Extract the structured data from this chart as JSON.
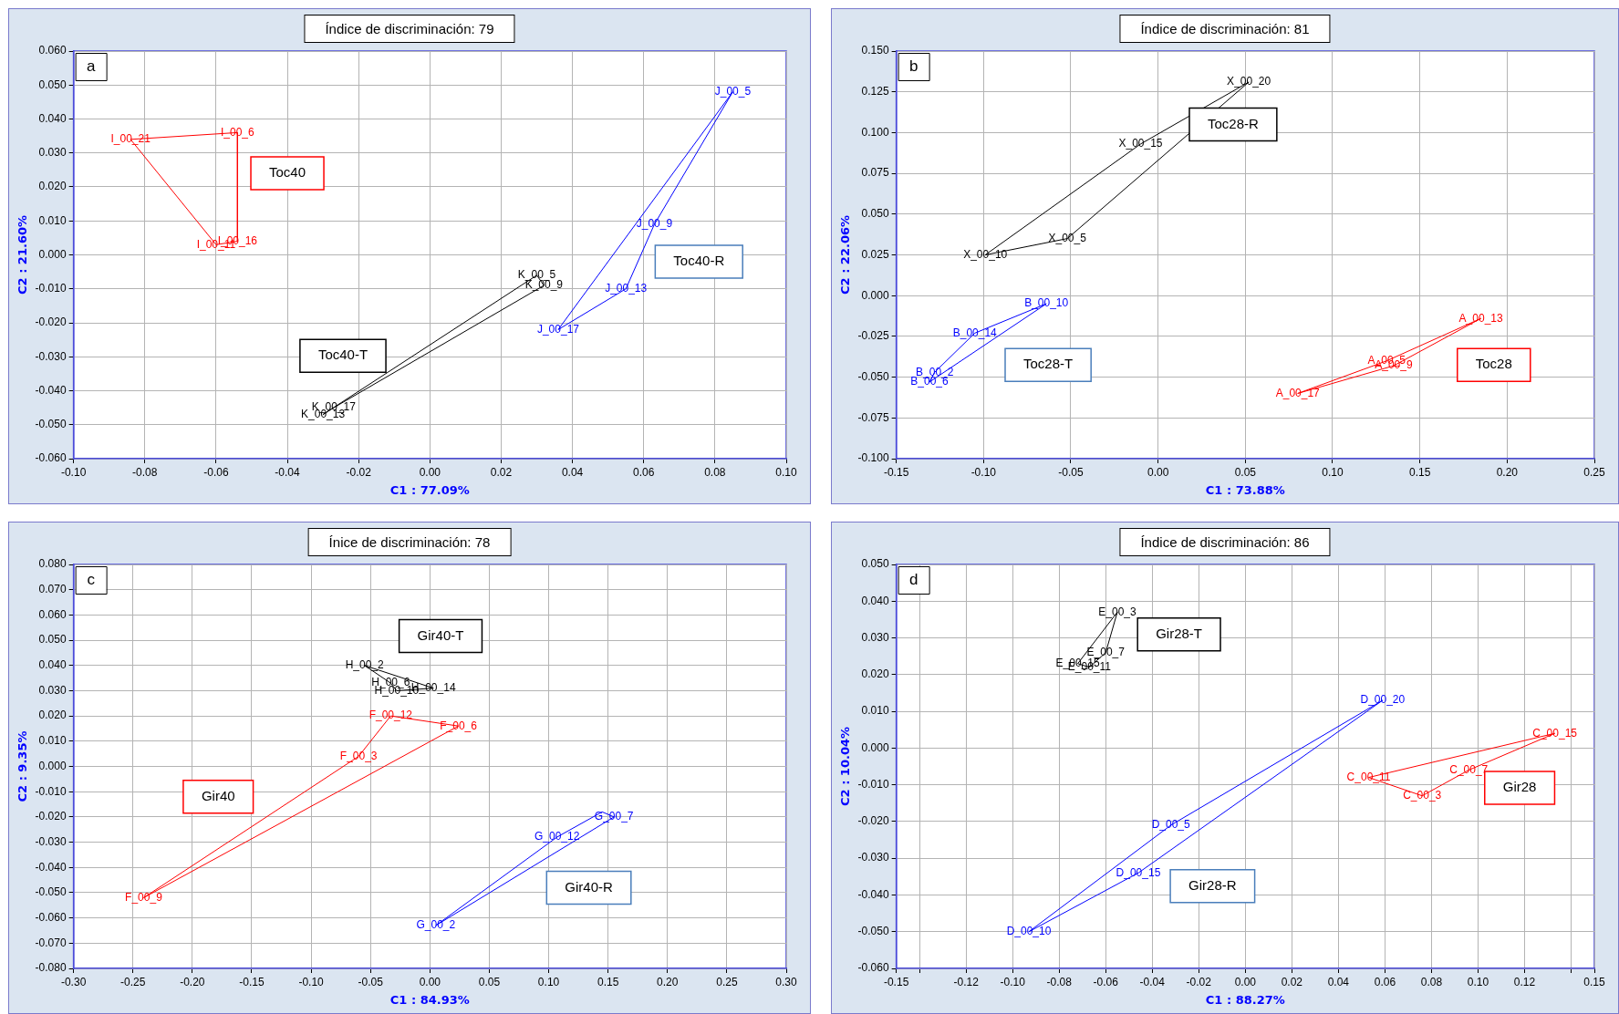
{
  "chart_data": [
    {
      "type": "line",
      "title": "Índice de discriminación: 79",
      "xlabel": "C1 : 77.09%",
      "ylabel": "C2 : 21.60%",
      "grid": true,
      "legend": false,
      "marker": "none",
      "xlim": [
        -0.1,
        0.1
      ],
      "ylim": [
        -0.06,
        0.06
      ],
      "xticks": [
        {
          "value": -0.1,
          "label": "-0.10"
        },
        {
          "value": -0.08,
          "label": "-0.08"
        },
        {
          "value": -0.06,
          "label": "-0.06"
        },
        {
          "value": -0.04,
          "label": "-0.04"
        },
        {
          "value": -0.02,
          "label": "-0.02"
        },
        {
          "value": 0,
          "label": "0.00"
        },
        {
          "value": 0.02,
          "label": "0.02"
        },
        {
          "value": 0.04,
          "label": "0.04"
        },
        {
          "value": 0.06,
          "label": "0.06"
        },
        {
          "value": 0.08,
          "label": "0.08"
        },
        {
          "value": 0.1,
          "label": "0.10"
        }
      ],
      "yticks": [
        {
          "value": -0.06,
          "label": "-0.060"
        },
        {
          "value": -0.05,
          "label": "-0.050"
        },
        {
          "value": -0.04,
          "label": "-0.040"
        },
        {
          "value": -0.03,
          "label": "-0.030"
        },
        {
          "value": -0.02,
          "label": "-0.020"
        },
        {
          "value": -0.01,
          "label": "-0.010"
        },
        {
          "value": 0,
          "label": "0.000"
        },
        {
          "value": 0.01,
          "label": "0.010"
        },
        {
          "value": 0.02,
          "label": "0.020"
        },
        {
          "value": 0.03,
          "label": "0.030"
        },
        {
          "value": 0.04,
          "label": "0.040"
        },
        {
          "value": 0.05,
          "label": "0.050"
        },
        {
          "value": 0.06,
          "label": "0.060"
        }
      ],
      "annotations": [
        "a"
      ],
      "series": [
        {
          "name": "Toc40",
          "color": "#ff0000",
          "x": [
            -0.084,
            -0.054,
            -0.054
          ],
          "values": [
            0.034,
            0.036,
            0.004
          ],
          "value_labels": [
            "I_00_21",
            "I_00_6",
            "I_00_16"
          ]
        },
        {
          "color": "#ff0000",
          "x": [
            -0.084,
            -0.06,
            -0.054
          ],
          "values": [
            0.034,
            0.003,
            0.004
          ],
          "value_labels": [
            null,
            "I_00_11",
            null
          ]
        },
        {
          "color": "#0000ff",
          "x": [
            0.036,
            0.085
          ],
          "values": [
            -0.022,
            0.048
          ],
          "value_labels": [
            "J_00_17",
            "J_00_5"
          ]
        },
        {
          "name": "Toc40-R",
          "color": "#0000ff",
          "x": [
            0.036,
            0.055,
            0.063,
            0.085
          ],
          "values": [
            -0.022,
            -0.01,
            0.009,
            0.048
          ],
          "value_labels": [
            null,
            "J_00_13",
            "J_00_9",
            null
          ]
        },
        {
          "name": "Toc40-T",
          "color": "#000000",
          "x": [
            -0.03,
            0.03,
            0.032
          ],
          "values": [
            -0.047,
            -0.006,
            -0.009
          ],
          "value_labels": [
            "K_00_13",
            "K_00_5",
            "K_00_9"
          ]
        },
        {
          "color": "#000000",
          "x": [
            -0.03,
            -0.027,
            0.032
          ],
          "values": [
            -0.047,
            -0.045,
            -0.009
          ],
          "value_labels": [
            null,
            "K_00_17",
            null
          ]
        }
      ]
    },
    {
      "type": "line",
      "title": "Índice de discriminación: 81",
      "xlabel": "C1 : 73.88%",
      "ylabel": "C2 : 22.06%",
      "grid": true,
      "legend": false,
      "marker": "none",
      "xlim": [
        -0.15,
        0.25
      ],
      "ylim": [
        -0.1,
        0.15
      ],
      "xticks": [
        {
          "value": -0.15,
          "label": "-0.15"
        },
        {
          "value": -0.1,
          "label": "-0.10"
        },
        {
          "value": -0.05,
          "label": "-0.05"
        },
        {
          "value": 0,
          "label": "0.00"
        },
        {
          "value": 0.05,
          "label": "0.05"
        },
        {
          "value": 0.1,
          "label": "0.10"
        },
        {
          "value": 0.15,
          "label": "0.15"
        },
        {
          "value": 0.2,
          "label": "0.20"
        },
        {
          "value": 0.25,
          "label": "0.25"
        }
      ],
      "yticks": [
        {
          "value": -0.1,
          "label": "-0.100"
        },
        {
          "value": -0.075,
          "label": "-0.075"
        },
        {
          "value": -0.05,
          "label": "-0.050"
        },
        {
          "value": -0.025,
          "label": "-0.025"
        },
        {
          "value": 0,
          "label": "0.000"
        },
        {
          "value": 0.025,
          "label": "0.025"
        },
        {
          "value": 0.05,
          "label": "0.050"
        },
        {
          "value": 0.075,
          "label": "0.075"
        },
        {
          "value": 0.1,
          "label": "0.100"
        },
        {
          "value": 0.125,
          "label": "0.125"
        },
        {
          "value": 0.15,
          "label": "0.150"
        }
      ],
      "annotations": [
        "b"
      ],
      "series": [
        {
          "name": "Toc28-R",
          "color": "#000000",
          "x": [
            -0.099,
            -0.01,
            0.052
          ],
          "values": [
            0.025,
            0.093,
            0.131
          ],
          "value_labels": [
            "X_00_10",
            "X_00_15",
            "X_00_20"
          ]
        },
        {
          "color": "#000000",
          "x": [
            -0.099,
            -0.052,
            0.052
          ],
          "values": [
            0.025,
            0.035,
            0.131
          ],
          "value_labels": [
            null,
            "X_00_5",
            null
          ]
        },
        {
          "name": "Toc28-T",
          "color": "#0000ff",
          "x": [
            -0.131,
            -0.128,
            -0.105,
            -0.064
          ],
          "values": [
            -0.053,
            -0.047,
            -0.023,
            -0.005
          ],
          "value_labels": [
            "B_00_6",
            "B_00_2",
            "B_00_14",
            "B_00_10"
          ]
        },
        {
          "color": "#0000ff",
          "x": [
            -0.131,
            -0.064
          ],
          "values": [
            -0.053,
            -0.005
          ],
          "value_labels": [
            null,
            null
          ]
        },
        {
          "name": "Toc28",
          "color": "#ff0000",
          "x": [
            0.08,
            0.131,
            0.185
          ],
          "values": [
            -0.06,
            -0.04,
            -0.014
          ],
          "value_labels": [
            "A_00_17",
            "A_00_5",
            "A_00_13"
          ]
        },
        {
          "color": "#ff0000",
          "x": [
            0.08,
            0.135,
            0.185
          ],
          "values": [
            -0.06,
            -0.043,
            -0.014
          ],
          "value_labels": [
            null,
            "A_00_9",
            null
          ]
        }
      ]
    },
    {
      "type": "line",
      "title": "Ínice de discriminación: 78",
      "xlabel": "C1 : 84.93%",
      "ylabel": "C2 : 9.35%",
      "grid": true,
      "legend": false,
      "marker": "none",
      "xlim": [
        -0.3,
        0.3
      ],
      "ylim": [
        -0.08,
        0.08
      ],
      "xticks": [
        {
          "value": -0.3,
          "label": "-0.30"
        },
        {
          "value": -0.25,
          "label": "-0.25"
        },
        {
          "value": -0.2,
          "label": "-0.20"
        },
        {
          "value": -0.15,
          "label": "-0.15"
        },
        {
          "value": -0.1,
          "label": "-0.10"
        },
        {
          "value": -0.05,
          "label": "-0.05"
        },
        {
          "value": 0,
          "label": "0.00"
        },
        {
          "value": 0.05,
          "label": "0.05"
        },
        {
          "value": 0.1,
          "label": "0.10"
        },
        {
          "value": 0.15,
          "label": "0.15"
        },
        {
          "value": 0.2,
          "label": "0.20"
        },
        {
          "value": 0.25,
          "label": "0.25"
        },
        {
          "value": 0.3,
          "label": "0.30"
        }
      ],
      "yticks": [
        {
          "value": -0.08,
          "label": "-0.080"
        },
        {
          "value": -0.07,
          "label": "-0.070"
        },
        {
          "value": -0.06,
          "label": "-0.060"
        },
        {
          "value": -0.05,
          "label": "-0.050"
        },
        {
          "value": -0.04,
          "label": "-0.040"
        },
        {
          "value": -0.03,
          "label": "-0.030"
        },
        {
          "value": -0.02,
          "label": "-0.020"
        },
        {
          "value": -0.01,
          "label": "-0.010"
        },
        {
          "value": 0,
          "label": "0.000"
        },
        {
          "value": 0.01,
          "label": "0.010"
        },
        {
          "value": 0.02,
          "label": "0.020"
        },
        {
          "value": 0.03,
          "label": "0.030"
        },
        {
          "value": 0.04,
          "label": "0.040"
        },
        {
          "value": 0.05,
          "label": "0.050"
        },
        {
          "value": 0.06,
          "label": "0.060"
        },
        {
          "value": 0.07,
          "label": "0.070"
        },
        {
          "value": 0.08,
          "label": "0.080"
        }
      ],
      "annotations": [
        "c"
      ],
      "series": [
        {
          "name": "Gir40-T",
          "color": "#000000",
          "x": [
            -0.055,
            0.003
          ],
          "values": [
            0.04,
            0.031
          ],
          "value_labels": [
            "H_00_2",
            "H_00_14"
          ]
        },
        {
          "color": "#000000",
          "x": [
            -0.055,
            -0.033,
            -0.028,
            0.003
          ],
          "values": [
            0.04,
            0.033,
            0.03,
            0.031
          ],
          "value_labels": [
            null,
            "H_00_6",
            "H_00_10",
            null
          ]
        },
        {
          "name": "Gir40",
          "color": "#ff0000",
          "x": [
            -0.241,
            -0.06,
            -0.033,
            0.024
          ],
          "values": [
            -0.052,
            0.004,
            0.02,
            0.016
          ],
          "value_labels": [
            "F_00_9",
            "F_00_3",
            "F_00_12",
            "F_00_6"
          ]
        },
        {
          "color": "#ff0000",
          "x": [
            -0.241,
            0.024
          ],
          "values": [
            -0.052,
            0.016
          ],
          "value_labels": [
            null,
            null
          ]
        },
        {
          "name": "Gir40-R",
          "color": "#0000ff",
          "x": [
            0.005,
            0.107,
            0.145,
            0.155
          ],
          "values": [
            -0.063,
            -0.028,
            -0.018,
            -0.02
          ],
          "value_labels": [
            "G_00_2",
            "G_00_12",
            null,
            "G_00_7"
          ]
        },
        {
          "color": "#0000ff",
          "x": [
            0.005,
            0.155
          ],
          "values": [
            -0.063,
            -0.02
          ],
          "value_labels": [
            null,
            null
          ]
        }
      ]
    },
    {
      "type": "line",
      "title": "Índice de discriminación: 86",
      "xlabel": "C1 : 88.27%",
      "ylabel": "C2 : 10.04%",
      "grid": true,
      "legend": false,
      "marker": "none",
      "xlim": [
        -0.15,
        0.15
      ],
      "ylim": [
        -0.06,
        0.05
      ],
      "xticks": [
        {
          "value": -0.15,
          "label": "-0.15"
        },
        {
          "value": -0.14,
          "label": null
        },
        {
          "value": -0.12,
          "label": "-0.12"
        },
        {
          "value": -0.1,
          "label": "-0.10"
        },
        {
          "value": -0.08,
          "label": "-0.08"
        },
        {
          "value": -0.06,
          "label": "-0.06"
        },
        {
          "value": -0.04,
          "label": "-0.04"
        },
        {
          "value": -0.02,
          "label": "-0.02"
        },
        {
          "value": 0,
          "label": "0.00"
        },
        {
          "value": 0.02,
          "label": "0.02"
        },
        {
          "value": 0.04,
          "label": "0.04"
        },
        {
          "value": 0.06,
          "label": "0.06"
        },
        {
          "value": 0.08,
          "label": "0.08"
        },
        {
          "value": 0.1,
          "label": "0.10"
        },
        {
          "value": 0.12,
          "label": "0.12"
        },
        {
          "value": 0.14,
          "label": null
        },
        {
          "value": 0.15,
          "label": "0.15"
        }
      ],
      "yticks": [
        {
          "value": -0.06,
          "label": "-0.060"
        },
        {
          "value": -0.05,
          "label": "-0.050"
        },
        {
          "value": -0.04,
          "label": "-0.040"
        },
        {
          "value": -0.03,
          "label": "-0.030"
        },
        {
          "value": -0.02,
          "label": "-0.020"
        },
        {
          "value": -0.01,
          "label": "-0.010"
        },
        {
          "value": 0,
          "label": "0.000"
        },
        {
          "value": 0.01,
          "label": "0.010"
        },
        {
          "value": 0.02,
          "label": "0.020"
        },
        {
          "value": 0.03,
          "label": "0.030"
        },
        {
          "value": 0.04,
          "label": "0.040"
        },
        {
          "value": 0.05,
          "label": "0.050"
        }
      ],
      "annotations": [
        "d"
      ],
      "series": [
        {
          "name": "Gir28-T",
          "color": "#000000",
          "x": [
            -0.072,
            -0.055
          ],
          "values": [
            0.023,
            0.037
          ],
          "value_labels": [
            "E_00_15",
            "E_00_3"
          ]
        },
        {
          "color": "#000000",
          "x": [
            -0.072,
            -0.067,
            -0.06,
            -0.055
          ],
          "values": [
            0.023,
            0.022,
            0.026,
            0.037
          ],
          "value_labels": [
            null,
            "E_00_11",
            "E_00_7",
            null
          ]
        },
        {
          "color": "#0000ff",
          "x": [
            -0.093,
            -0.032,
            0.059
          ],
          "values": [
            -0.05,
            -0.021,
            0.013
          ],
          "value_labels": [
            "D_00_10",
            "D_00_5",
            "D_00_20"
          ]
        },
        {
          "name": "Gir28-R",
          "color": "#0000ff",
          "x": [
            -0.093,
            -0.046,
            0.059
          ],
          "values": [
            -0.05,
            -0.034,
            0.013
          ],
          "value_labels": [
            null,
            "D_00_15",
            null
          ]
        },
        {
          "name": "Gir28",
          "color": "#ff0000",
          "x": [
            0.053,
            0.133
          ],
          "values": [
            -0.008,
            0.004
          ],
          "value_labels": [
            "C_00_11",
            "C_00_15"
          ]
        },
        {
          "color": "#ff0000",
          "x": [
            0.053,
            0.076,
            0.096,
            0.133
          ],
          "values": [
            -0.008,
            -0.013,
            -0.006,
            0.004
          ],
          "value_labels": [
            null,
            "C_00_3",
            "C_00_7",
            null
          ]
        }
      ]
    }
  ]
}
